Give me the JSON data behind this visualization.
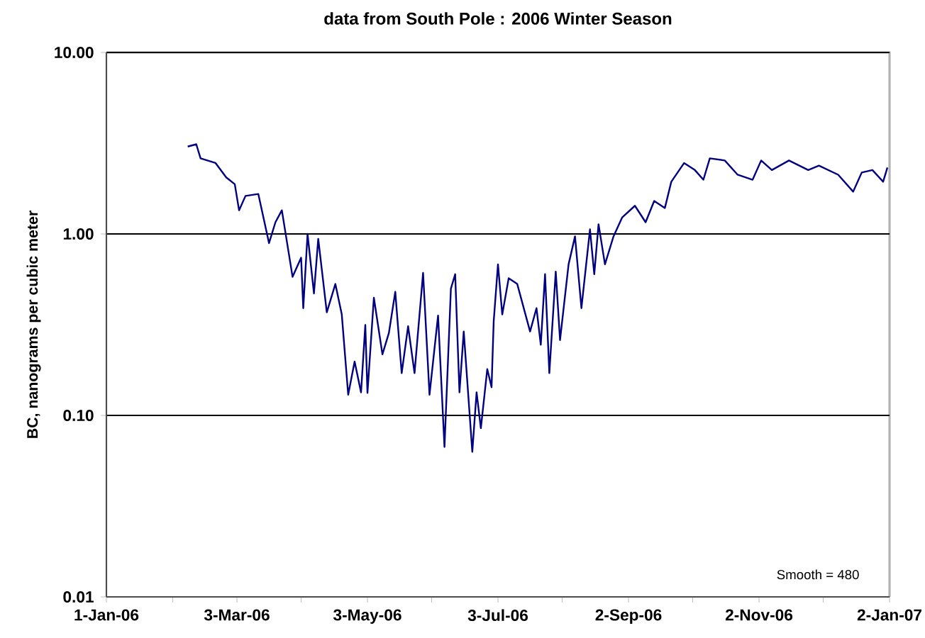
{
  "chart_data": {
    "type": "line",
    "title": "data from South Pole : 2006 Winter Season",
    "ylabel": "BC, nanograms per cubic meter",
    "log": "y",
    "grid": "y",
    "marker": "none",
    "line_style": "solid",
    "xlim": [
      "2006-01-01",
      "2007-01-02"
    ],
    "xticks": [
      {
        "value": "2006-01-01",
        "label": "1-Jan-06"
      },
      {
        "value": "2006-02-01",
        "label": null
      },
      {
        "value": "2006-03-03",
        "label": "3-Mar-06"
      },
      {
        "value": "2006-04-02",
        "label": null
      },
      {
        "value": "2006-05-03",
        "label": "3-May-06"
      },
      {
        "value": "2006-06-02",
        "label": null
      },
      {
        "value": "2006-07-03",
        "label": "3-Jul-06"
      },
      {
        "value": "2006-08-02",
        "label": null
      },
      {
        "value": "2006-09-02",
        "label": "2-Sep-06"
      },
      {
        "value": "2006-10-02",
        "label": null
      },
      {
        "value": "2006-11-02",
        "label": "2-Nov-06"
      },
      {
        "value": "2006-12-02",
        "label": null
      },
      {
        "value": "2007-01-02",
        "label": "2-Jan-07"
      }
    ],
    "ylim": [
      0.01,
      10
    ],
    "yticks": [
      {
        "value": 0.01,
        "label": "0.01"
      },
      {
        "value": 0.1,
        "label": "0.10"
      },
      {
        "value": 1,
        "label": "1.00"
      },
      {
        "value": 10,
        "label": "10.00"
      }
    ],
    "annotations": [
      "Smooth = 480"
    ],
    "x": [
      "2006-02-08",
      "2006-02-12",
      "2006-02-14",
      "2006-02-21",
      "2006-02-26",
      "2006-03-02",
      "2006-03-04",
      "2006-03-07",
      "2006-03-13",
      "2006-03-18",
      "2006-03-21",
      "2006-03-24",
      "2006-03-29",
      "2006-04-02",
      "2006-04-03",
      "2006-04-05",
      "2006-04-08",
      "2006-04-10",
      "2006-04-14",
      "2006-04-18",
      "2006-04-21",
      "2006-04-24",
      "2006-04-27",
      "2006-04-30",
      "2006-05-02",
      "2006-05-03",
      "2006-05-06",
      "2006-05-10",
      "2006-05-13",
      "2006-05-16",
      "2006-05-19",
      "2006-05-22",
      "2006-05-25",
      "2006-05-29",
      "2006-06-01",
      "2006-06-05",
      "2006-06-08",
      "2006-06-11",
      "2006-06-13",
      "2006-06-15",
      "2006-06-17",
      "2006-06-21",
      "2006-06-23",
      "2006-06-25",
      "2006-06-28",
      "2006-06-30",
      "2006-07-01",
      "2006-07-03",
      "2006-07-05",
      "2006-07-08",
      "2006-07-12",
      "2006-07-18",
      "2006-07-21",
      "2006-07-23",
      "2006-07-25",
      "2006-07-27",
      "2006-07-30",
      "2006-08-01",
      "2006-08-05",
      "2006-08-08",
      "2006-08-11",
      "2006-08-15",
      "2006-08-17",
      "2006-08-19",
      "2006-08-22",
      "2006-08-26",
      "2006-08-30",
      "2006-09-05",
      "2006-09-10",
      "2006-09-14",
      "2006-09-19",
      "2006-09-22",
      "2006-09-28",
      "2006-10-03",
      "2006-10-07",
      "2006-10-10",
      "2006-10-17",
      "2006-10-23",
      "2006-10-30",
      "2006-11-03",
      "2006-11-08",
      "2006-11-16",
      "2006-11-25",
      "2006-11-30",
      "2006-12-09",
      "2006-12-16",
      "2006-12-20",
      "2006-12-25",
      "2006-12-30",
      "2007-01-01"
    ],
    "series": [
      {
        "color": "#000080",
        "values": [
          3.03,
          3.12,
          2.61,
          2.46,
          2.05,
          1.88,
          1.35,
          1.62,
          1.66,
          0.89,
          1.16,
          1.35,
          0.58,
          0.74,
          0.39,
          1.0,
          0.47,
          0.94,
          0.37,
          0.53,
          0.36,
          0.13,
          0.198,
          0.134,
          0.315,
          0.133,
          0.445,
          0.217,
          0.284,
          0.48,
          0.171,
          0.31,
          0.171,
          0.61,
          0.13,
          0.355,
          0.067,
          0.5,
          0.6,
          0.134,
          0.29,
          0.063,
          0.134,
          0.085,
          0.18,
          0.143,
          0.33,
          0.68,
          0.36,
          0.57,
          0.53,
          0.29,
          0.39,
          0.245,
          0.6,
          0.171,
          0.62,
          0.26,
          0.68,
          0.97,
          0.39,
          1.06,
          0.6,
          1.13,
          0.68,
          0.97,
          1.23,
          1.43,
          1.16,
          1.52,
          1.39,
          1.94,
          2.46,
          2.25,
          1.99,
          2.61,
          2.54,
          2.12,
          1.99,
          2.54,
          2.25,
          2.54,
          2.25,
          2.38,
          2.12,
          1.71,
          2.18,
          2.25,
          1.94,
          2.32
        ]
      }
    ]
  }
}
